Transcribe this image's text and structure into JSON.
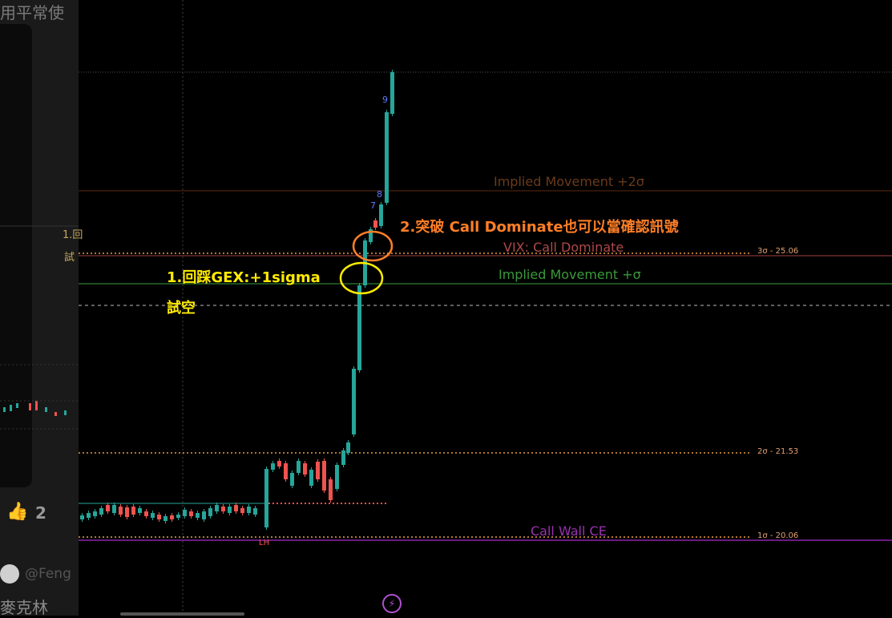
{
  "background_panel": {
    "header_text": "用平常使",
    "like_count": "2",
    "user_handle": "@Feng",
    "user_name": "麥克林",
    "side_label_1": "1.回",
    "side_label_2": "試"
  },
  "chart": {
    "levels": {
      "implied_plus_2sigma": "Implied Movement +2σ",
      "vix_call_dominate": "VIX: Call Dominate",
      "implied_plus_sigma": "Implied Movement +σ",
      "call_wall": "Call Wall CE",
      "sigma3": "3σ - 25.06",
      "sigma2": "2σ - 21.53",
      "sigma1": "1σ - 20.06"
    },
    "annotations": {
      "breakout": "2.突破 Call Dominate也可以當確認訊號",
      "retest_line1": "1.回踩GEX:+1sigma",
      "retest_line2": "試空"
    },
    "markers": {
      "lh": "LH",
      "n7": "7",
      "n8": "8",
      "n9": "9"
    },
    "colors": {
      "up": "#26a69a",
      "down": "#ef5350",
      "orange_circle": "#ff7f27",
      "yellow_circle": "#ffeb00",
      "call_wall": "#8e24aa",
      "implied": "#2e7d32"
    }
  }
}
